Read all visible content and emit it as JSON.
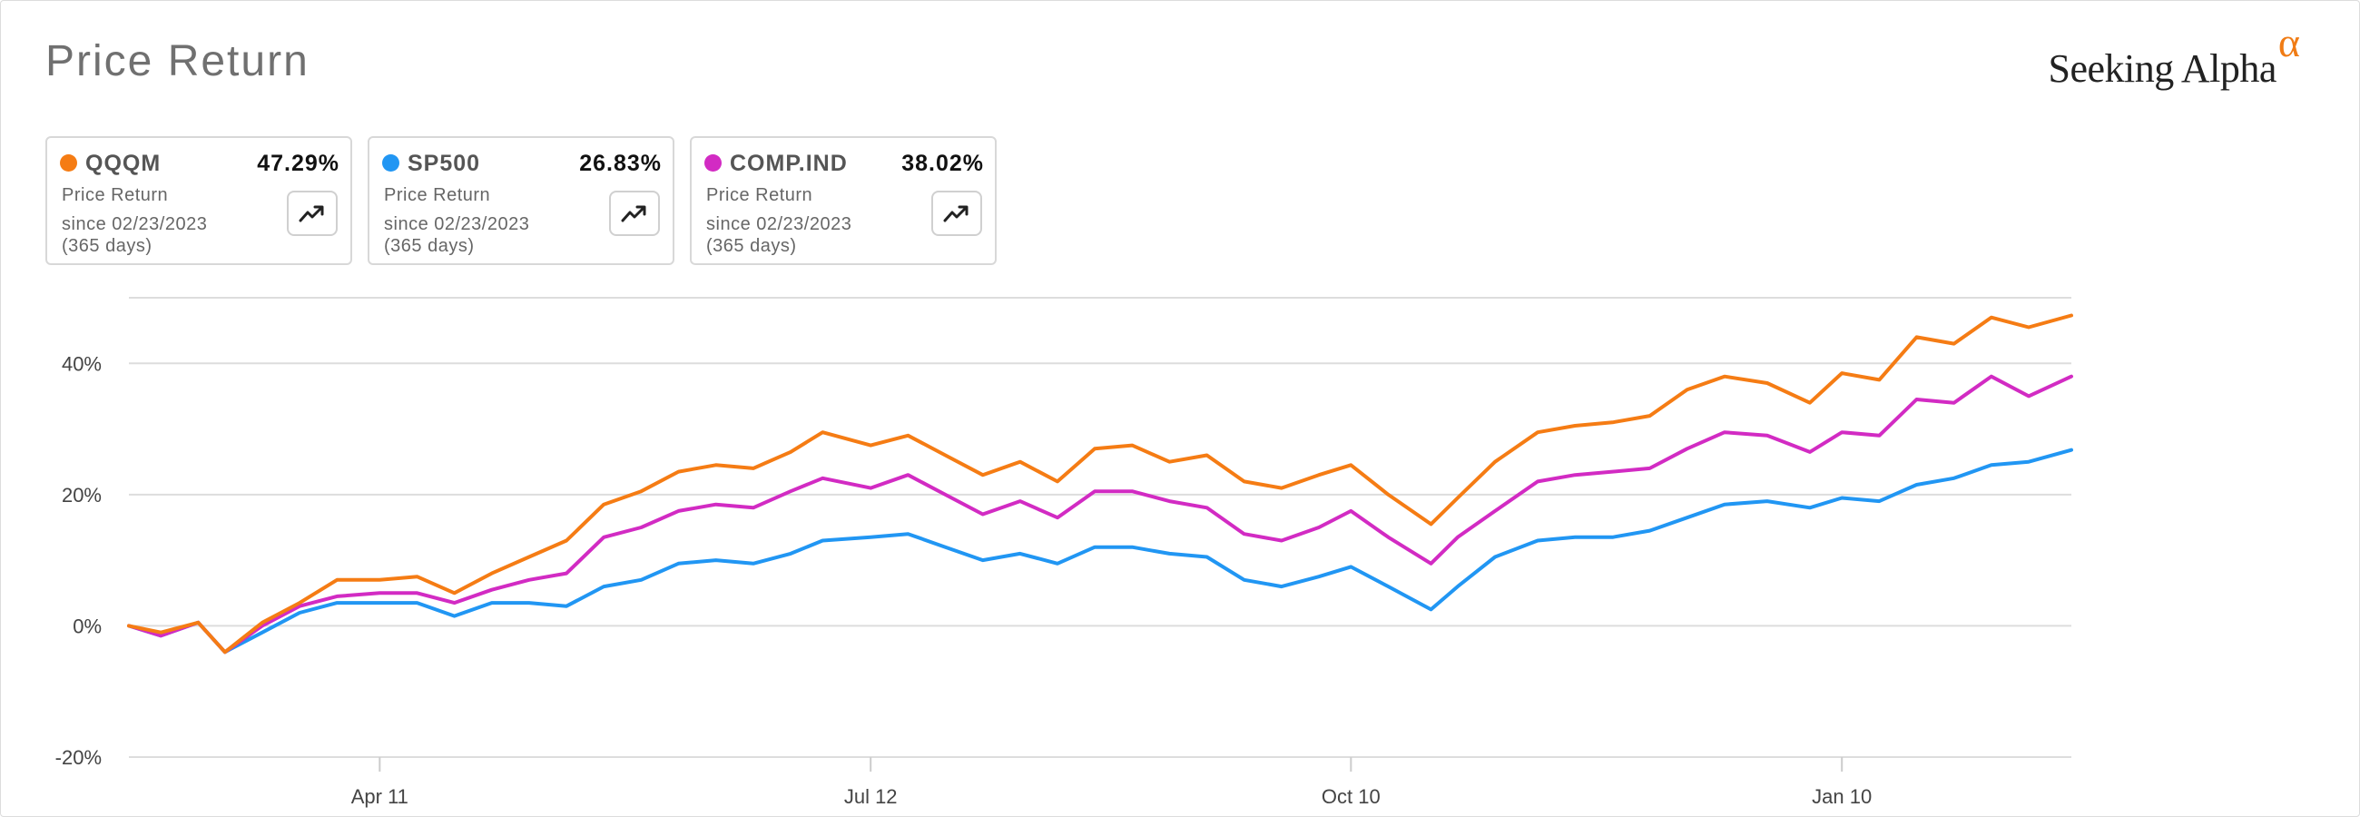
{
  "page": {
    "title": "Price Return",
    "brand": "Seeking Alpha",
    "brand_symbol": "α"
  },
  "cards": [
    {
      "ticker": "QQQM",
      "value": "47.29%",
      "metric": "Price Return",
      "since": "since 02/23/2023",
      "days": "(365 days)",
      "color": "#f57c14"
    },
    {
      "ticker": "SP500",
      "value": "26.83%",
      "metric": "Price Return",
      "since": "since 02/23/2023",
      "days": "(365 days)",
      "color": "#2196f3"
    },
    {
      "ticker": "COMP.IND",
      "value": "38.02%",
      "metric": "Price Return",
      "since": "since 02/23/2023",
      "days": "(365 days)",
      "color": "#d22bc3"
    }
  ],
  "icons": {
    "trend_button": "trending-up-icon"
  },
  "chart_data": {
    "type": "line",
    "title": "Price Return",
    "xlabel": "",
    "ylabel": "",
    "x_start": "2023-02-23",
    "x_end": "2024-02-22",
    "ylim": [
      -20,
      50
    ],
    "yticks": [
      -20,
      0,
      20,
      40
    ],
    "ytick_labels": [
      "-20%",
      "0%",
      "20%",
      "40%"
    ],
    "xticks": [
      {
        "date": "2023-04-11",
        "label": "Apr 11"
      },
      {
        "date": "2023-07-12",
        "label": "Jul 12"
      },
      {
        "date": "2023-10-10",
        "label": "Oct 10"
      },
      {
        "date": "2024-01-10",
        "label": "Jan 10"
      }
    ],
    "grid": true,
    "legend": "top-left",
    "x": [
      "2023-02-23",
      "2023-03-01",
      "2023-03-08",
      "2023-03-13",
      "2023-03-20",
      "2023-03-27",
      "2023-04-03",
      "2023-04-11",
      "2023-04-18",
      "2023-04-25",
      "2023-05-02",
      "2023-05-09",
      "2023-05-16",
      "2023-05-23",
      "2023-05-30",
      "2023-06-06",
      "2023-06-13",
      "2023-06-20",
      "2023-06-27",
      "2023-07-03",
      "2023-07-12",
      "2023-07-19",
      "2023-07-26",
      "2023-08-02",
      "2023-08-09",
      "2023-08-16",
      "2023-08-23",
      "2023-08-30",
      "2023-09-06",
      "2023-09-13",
      "2023-09-20",
      "2023-09-27",
      "2023-10-04",
      "2023-10-10",
      "2023-10-17",
      "2023-10-25",
      "2023-10-30",
      "2023-11-06",
      "2023-11-14",
      "2023-11-21",
      "2023-11-28",
      "2023-12-05",
      "2023-12-12",
      "2023-12-19",
      "2023-12-27",
      "2024-01-04",
      "2024-01-10",
      "2024-01-17",
      "2024-01-24",
      "2024-01-31",
      "2024-02-07",
      "2024-02-14",
      "2024-02-22"
    ],
    "series": [
      {
        "name": "QQQM",
        "color": "#f57c14",
        "values": [
          0.0,
          -1.0,
          0.5,
          -4.0,
          0.5,
          3.5,
          7.0,
          7.0,
          7.5,
          5.0,
          8.0,
          10.5,
          13.0,
          18.5,
          20.5,
          23.5,
          24.5,
          24.0,
          26.5,
          29.5,
          27.5,
          29.0,
          26.0,
          23.0,
          25.0,
          22.0,
          27.0,
          27.5,
          25.0,
          26.0,
          22.0,
          21.0,
          23.0,
          24.5,
          20.0,
          15.5,
          19.5,
          25.0,
          29.5,
          30.5,
          31.0,
          32.0,
          36.0,
          38.0,
          37.0,
          34.0,
          38.5,
          37.5,
          44.0,
          43.0,
          47.0,
          45.5,
          47.3
        ]
      },
      {
        "name": "SP500",
        "color": "#2196f3",
        "values": [
          0.0,
          -1.5,
          0.5,
          -4.0,
          -1.0,
          2.0,
          3.5,
          3.5,
          3.5,
          1.5,
          3.5,
          3.5,
          3.0,
          6.0,
          7.0,
          9.5,
          10.0,
          9.5,
          11.0,
          13.0,
          13.5,
          14.0,
          12.0,
          10.0,
          11.0,
          9.5,
          12.0,
          12.0,
          11.0,
          10.5,
          7.0,
          6.0,
          7.5,
          9.0,
          6.0,
          2.5,
          6.0,
          10.5,
          13.0,
          13.5,
          13.5,
          14.5,
          16.5,
          18.5,
          19.0,
          18.0,
          19.5,
          19.0,
          21.5,
          22.5,
          24.5,
          25.0,
          26.8
        ]
      },
      {
        "name": "COMP.IND",
        "color": "#d22bc3",
        "values": [
          0.0,
          -1.5,
          0.5,
          -4.0,
          0.0,
          3.0,
          4.5,
          5.0,
          5.0,
          3.5,
          5.5,
          7.0,
          8.0,
          13.5,
          15.0,
          17.5,
          18.5,
          18.0,
          20.5,
          22.5,
          21.0,
          23.0,
          20.0,
          17.0,
          19.0,
          16.5,
          20.5,
          20.5,
          19.0,
          18.0,
          14.0,
          13.0,
          15.0,
          17.5,
          13.5,
          9.5,
          13.5,
          17.5,
          22.0,
          23.0,
          23.5,
          24.0,
          27.0,
          29.5,
          29.0,
          26.5,
          29.5,
          29.0,
          34.5,
          34.0,
          38.0,
          35.0,
          38.0
        ]
      }
    ]
  }
}
